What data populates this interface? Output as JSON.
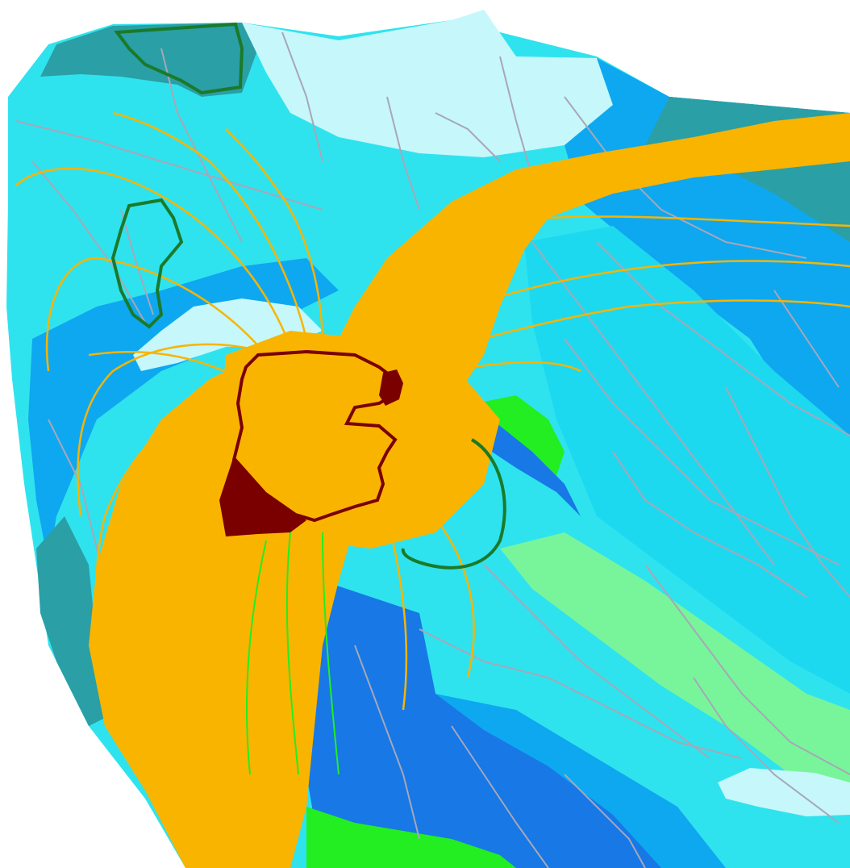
{
  "map": {
    "colors": {
      "background": "#ffffff",
      "zone_teal_dark": "#2a9fa6",
      "zone_cyan": "#2fe3ee",
      "zone_cyan_light": "#1dd9f0",
      "zone_pale": "#c6f7fb",
      "zone_blue": "#0ea8f0",
      "zone_blue_dark": "#1778e6",
      "zone_mint": "#78f59a",
      "zone_green": "#22ee22",
      "flow_lines": "#f9b400",
      "roads": "#a7a7b7",
      "boundary_green": "#1a7a2a",
      "site_outline": "#7a0000",
      "site_fill": "#7a0000"
    },
    "layers": [
      {
        "name": "geologic-zones",
        "type": "polygons"
      },
      {
        "name": "road-network",
        "type": "lines"
      },
      {
        "name": "flow-paths",
        "type": "lines"
      },
      {
        "name": "protected-areas",
        "type": "outlines"
      },
      {
        "name": "site-boundary",
        "type": "outline"
      },
      {
        "name": "source-areas",
        "type": "polygons"
      }
    ]
  }
}
